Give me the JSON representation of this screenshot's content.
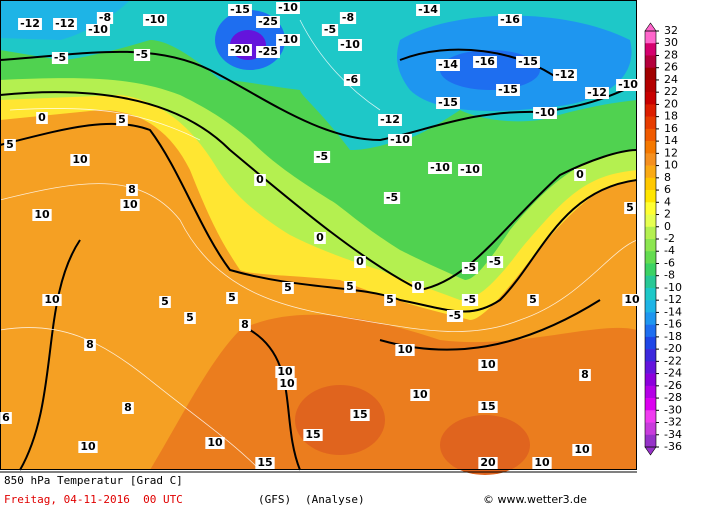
{
  "map_labels": [
    "-12",
    "-12",
    "-10",
    "-10",
    "-8",
    "-5",
    "-5",
    "-20",
    "-25",
    "-25",
    "-15",
    "-10",
    "-10",
    "-5",
    "-10",
    "-14",
    "-16",
    "-14",
    "-16",
    "-15",
    "-12",
    "-15",
    "-15",
    "-12",
    "-10",
    "-10",
    "-10",
    "-10",
    "-10",
    "-5",
    "-5",
    "-5",
    "-5",
    "-5",
    "-5",
    "0",
    "0",
    "0",
    "0",
    "0",
    "0",
    "5",
    "5",
    "5",
    "5",
    "5",
    "5",
    "5",
    "5",
    "5",
    "5",
    "10",
    "10",
    "10",
    "10",
    "10",
    "10",
    "10",
    "10",
    "10",
    "10",
    "10",
    "10",
    "10",
    "10",
    "15",
    "15",
    "15",
    "15",
    "20",
    "-6",
    "-8",
    "8",
    "8",
    "8",
    "8",
    "8",
    "6",
    "-12"
  ],
  "colorbar": {
    "ticks": [
      32,
      30,
      28,
      26,
      24,
      22,
      20,
      18,
      16,
      14,
      12,
      10,
      8,
      6,
      4,
      2,
      0,
      -2,
      -4,
      -6,
      -8,
      -10,
      -12,
      -14,
      -16,
      -18,
      -20,
      -22,
      -24,
      -26,
      -28,
      -30,
      -32,
      -34,
      -36
    ],
    "colors": [
      "#ff66cc",
      "#d4006e",
      "#b4003c",
      "#a00000",
      "#b40000",
      "#c80000",
      "#dc1e00",
      "#e63c00",
      "#f05a00",
      "#f57800",
      "#f59020",
      "#faaa14",
      "#ffc800",
      "#ffe600",
      "#ffff32",
      "#e6ff50",
      "#b4f050",
      "#8ce650",
      "#64dc50",
      "#3cd264",
      "#28c896",
      "#1ec8c8",
      "#1eb4e6",
      "#1e96f0",
      "#1e6ef0",
      "#1e46e6",
      "#3c28dc",
      "#6414dc",
      "#8c00dc",
      "#b400e6",
      "#dc00f0",
      "#f03cf0",
      "#c83cdc",
      "#9632c8"
    ]
  },
  "footer": {
    "title": "850 hPa Temperatur [Grad C]",
    "date": "Freitag, 04-11-2016  00 UTC",
    "model": "(GFS)",
    "run": "(Analyse)",
    "credit": "© www.wetter3.de"
  }
}
